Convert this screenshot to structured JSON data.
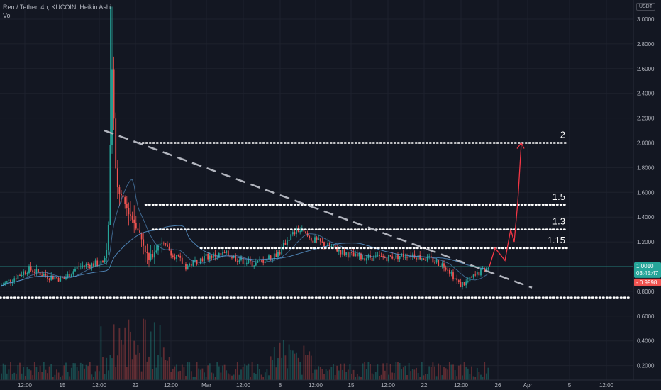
{
  "header": {
    "title": "Ren / Tether, 4h, KUCOIN, Heikin Ashi",
    "indicator": "Vol"
  },
  "axis": {
    "currency": "USDT"
  },
  "colors": {
    "background": "#131722",
    "up": "#26a69a",
    "down": "#ef5350",
    "grid": "#1e222d",
    "ma": "#5b9bd5",
    "trend": "#b2b5be",
    "levels": "#ffffff",
    "projection": "#f23645",
    "price_badge": "#26a69a",
    "prev_badge": "#ef5350"
  },
  "chart_data": {
    "type": "candlestick",
    "y_range": [
      0.15,
      3.1
    ],
    "y_ticks": [
      "3.0000",
      "2.8000",
      "2.6000",
      "2.4000",
      "2.2000",
      "2.0000",
      "1.8000",
      "1.6000",
      "1.4000",
      "1.2000",
      "1.0000",
      "0.8000",
      "0.6000",
      "0.4000",
      "0.2000"
    ],
    "x_ticks": [
      "12:00",
      "15",
      "12:00",
      "22",
      "12:00",
      "Mar",
      "12:00",
      "8",
      "12:00",
      "15",
      "12:00",
      "22",
      "12:00",
      "26",
      "Apr",
      "5",
      "12:00"
    ],
    "levels": [
      {
        "label": "2",
        "value": 2.0
      },
      {
        "label": "1.5",
        "value": 1.5
      },
      {
        "label": "1.3",
        "value": 1.3
      },
      {
        "label": "1.15",
        "value": 1.15
      },
      {
        "label": "",
        "value": 0.75
      }
    ],
    "last_price": {
      "value": "1.0010",
      "countdown": "03:45:47"
    },
    "prev_close": {
      "value": "0.9998"
    },
    "trendline": {
      "from": 2.1,
      "to": 0.83
    },
    "projection": [
      1.0,
      1.15,
      1.05,
      1.3,
      1.2,
      1.52,
      2.0
    ]
  }
}
